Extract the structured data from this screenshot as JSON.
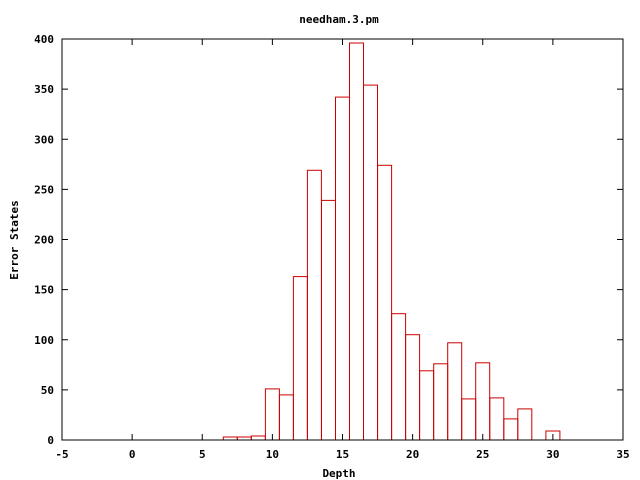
{
  "chart_data": {
    "type": "bar",
    "title": "needham.3.pm",
    "xlabel": "Depth",
    "ylabel": "Error States",
    "xlim": [
      -5,
      35
    ],
    "ylim": [
      0,
      400
    ],
    "xticks": [
      -5,
      0,
      5,
      10,
      15,
      20,
      25,
      30,
      35
    ],
    "yticks": [
      0,
      50,
      100,
      150,
      200,
      250,
      300,
      350,
      400
    ],
    "grid": false,
    "bar_color": "#cc0000",
    "bin_width": 1,
    "x": [
      7,
      8,
      9,
      10,
      11,
      12,
      13,
      14,
      15,
      16,
      17,
      18,
      19,
      20,
      21,
      22,
      23,
      24,
      25,
      26,
      27,
      28,
      29,
      30
    ],
    "values": [
      3,
      3,
      4,
      51,
      45,
      163,
      269,
      239,
      342,
      396,
      354,
      274,
      126,
      105,
      69,
      76,
      97,
      41,
      77,
      42,
      21,
      31,
      0,
      9
    ]
  }
}
